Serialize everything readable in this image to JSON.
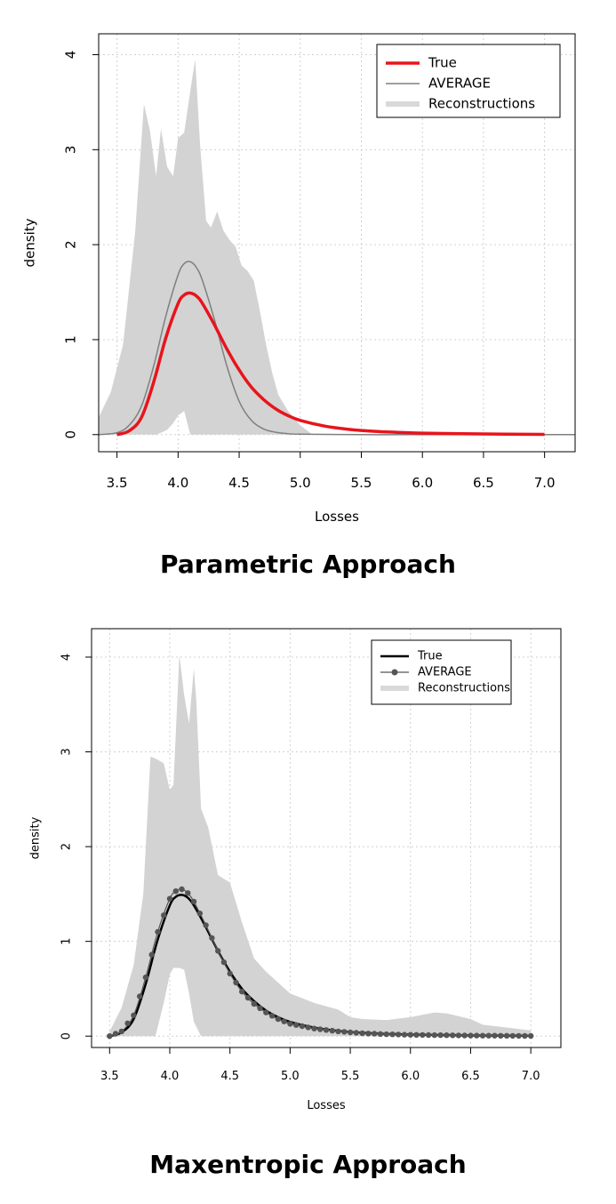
{
  "chart_data": [
    {
      "type": "area",
      "xlabel": "Losses",
      "ylabel": "density",
      "xlim": [
        3.35,
        7.25
      ],
      "ylim": [
        -0.18,
        4.22
      ],
      "xticks": [
        "3.5",
        "4.0",
        "4.5",
        "5.0",
        "5.5",
        "6.0",
        "6.5",
        "7.0"
      ],
      "yticks": [
        "0",
        "1",
        "2",
        "3",
        "4"
      ],
      "grid": true,
      "legend_position": "top-right",
      "legend": [
        "True",
        "AVERAGE",
        "Reconstructions"
      ],
      "colors": {
        "true": "#e8141c",
        "average": "#7f7f7f",
        "band": "#d3d3d3"
      },
      "series": [
        {
          "name": "True",
          "x": [
            3.5,
            3.6,
            3.7,
            3.8,
            3.9,
            4.0,
            4.05,
            4.1,
            4.15,
            4.2,
            4.3,
            4.4,
            4.5,
            4.6,
            4.7,
            4.8,
            4.9,
            5.0,
            5.2,
            5.4,
            5.6,
            5.8,
            6.0,
            6.5,
            7.0
          ],
          "values": [
            0.0,
            0.04,
            0.18,
            0.55,
            1.02,
            1.38,
            1.47,
            1.49,
            1.46,
            1.38,
            1.15,
            0.9,
            0.68,
            0.5,
            0.37,
            0.27,
            0.2,
            0.15,
            0.09,
            0.055,
            0.035,
            0.024,
            0.016,
            0.007,
            0.003
          ]
        },
        {
          "name": "AVERAGE",
          "x": [
            3.35,
            3.5,
            3.6,
            3.7,
            3.8,
            3.9,
            4.0,
            4.05,
            4.1,
            4.15,
            4.2,
            4.3,
            4.4,
            4.5,
            4.6,
            4.7,
            4.8,
            4.9,
            5.0,
            5.5,
            6.0,
            7.0,
            7.25
          ],
          "values": [
            0.0,
            0.02,
            0.1,
            0.3,
            0.72,
            1.25,
            1.68,
            1.8,
            1.82,
            1.76,
            1.62,
            1.2,
            0.72,
            0.35,
            0.15,
            0.06,
            0.025,
            0.01,
            0.005,
            0.0,
            0.0,
            0.0,
            0.0
          ]
        },
        {
          "name": "Reconstructions",
          "x": [
            3.35,
            3.45,
            3.55,
            3.65,
            3.72,
            3.77,
            3.82,
            3.86,
            3.91,
            3.96,
            4.0,
            4.05,
            4.1,
            4.14,
            4.18,
            4.23,
            4.27,
            4.32,
            4.37,
            4.42,
            4.47,
            4.52,
            4.57,
            4.62,
            4.67,
            4.72,
            4.77,
            4.82,
            4.9,
            5.0,
            5.1
          ],
          "upper": [
            0.18,
            0.45,
            0.95,
            2.15,
            3.48,
            3.2,
            2.72,
            3.22,
            2.82,
            2.72,
            3.12,
            3.18,
            3.62,
            3.95,
            3.05,
            2.25,
            2.18,
            2.35,
            2.15,
            2.05,
            1.98,
            1.78,
            1.72,
            1.62,
            1.3,
            0.95,
            0.65,
            0.42,
            0.25,
            0.1,
            0.0
          ],
          "lower": [
            0.0,
            0.0,
            0.0,
            0.0,
            0.0,
            0.0,
            0.0,
            0.02,
            0.05,
            0.12,
            0.2,
            0.25,
            0.0,
            0.0,
            0.0,
            0.0,
            0.0,
            0.0,
            0.0,
            0.0,
            0.0,
            0.0,
            0.0,
            0.0,
            0.0,
            0.0,
            0.0,
            0.0,
            0.0,
            0.0,
            0.0
          ]
        }
      ]
    },
    {
      "type": "area",
      "xlabel": "Losses",
      "ylabel": "density",
      "xlim": [
        3.35,
        7.25
      ],
      "ylim": [
        -0.12,
        4.3
      ],
      "xticks": [
        "3.5",
        "4.0",
        "4.5",
        "5.0",
        "5.5",
        "6.0",
        "6.5",
        "7.0"
      ],
      "yticks": [
        "0",
        "1",
        "2",
        "3",
        "4"
      ],
      "grid": true,
      "legend_position": "top-right",
      "legend": [
        "True",
        "AVERAGE",
        "Reconstructions"
      ],
      "colors": {
        "true": "#000000",
        "average": "#555555",
        "band": "#d3d3d3"
      },
      "series": [
        {
          "name": "True",
          "x": [
            3.5,
            3.6,
            3.7,
            3.8,
            3.9,
            4.0,
            4.05,
            4.1,
            4.15,
            4.2,
            4.3,
            4.4,
            4.5,
            4.6,
            4.7,
            4.8,
            4.9,
            5.0,
            5.2,
            5.4,
            5.6,
            5.8,
            6.0,
            6.5,
            7.0
          ],
          "values": [
            0.0,
            0.04,
            0.18,
            0.55,
            1.02,
            1.38,
            1.47,
            1.49,
            1.46,
            1.38,
            1.15,
            0.9,
            0.68,
            0.5,
            0.37,
            0.27,
            0.2,
            0.15,
            0.09,
            0.055,
            0.035,
            0.024,
            0.016,
            0.007,
            0.003
          ]
        },
        {
          "name": "AVERAGE",
          "x": [
            3.5,
            3.6,
            3.7,
            3.8,
            3.9,
            4.0,
            4.05,
            4.1,
            4.15,
            4.2,
            4.3,
            4.4,
            4.5,
            4.6,
            4.7,
            4.8,
            4.9,
            5.0,
            5.2,
            5.4,
            5.6,
            5.8,
            6.0,
            6.5,
            7.0
          ],
          "values": [
            0.0,
            0.05,
            0.22,
            0.62,
            1.1,
            1.45,
            1.53,
            1.55,
            1.51,
            1.42,
            1.17,
            0.9,
            0.66,
            0.47,
            0.34,
            0.25,
            0.18,
            0.13,
            0.08,
            0.05,
            0.03,
            0.02,
            0.014,
            0.006,
            0.002
          ]
        },
        {
          "name": "Reconstructions",
          "x": [
            3.5,
            3.6,
            3.7,
            3.78,
            3.84,
            3.88,
            3.95,
            4.0,
            4.03,
            4.08,
            4.12,
            4.16,
            4.2,
            4.22,
            4.26,
            4.32,
            4.4,
            4.5,
            4.6,
            4.7,
            4.8,
            5.0,
            5.2,
            5.4,
            5.5,
            5.6,
            5.8,
            6.0,
            6.2,
            6.3,
            6.5,
            6.6,
            7.0
          ],
          "upper": [
            0.05,
            0.3,
            0.75,
            1.5,
            2.95,
            2.93,
            2.88,
            2.6,
            2.65,
            4.02,
            3.6,
            3.3,
            3.88,
            3.55,
            2.4,
            2.2,
            1.7,
            1.62,
            1.2,
            0.82,
            0.68,
            0.45,
            0.35,
            0.28,
            0.2,
            0.18,
            0.17,
            0.2,
            0.25,
            0.24,
            0.18,
            0.12,
            0.06
          ],
          "lower": [
            0.0,
            0.0,
            0.0,
            0.0,
            0.0,
            0.0,
            0.35,
            0.65,
            0.72,
            0.72,
            0.7,
            0.45,
            0.15,
            0.1,
            0.0,
            0.0,
            0.0,
            0.0,
            0.0,
            0.0,
            0.0,
            0.0,
            0.0,
            0.0,
            0.0,
            0.0,
            0.0,
            0.0,
            0.0,
            0.0,
            0.0,
            0.0,
            0.0
          ]
        }
      ]
    }
  ],
  "captions": {
    "panel1": "Parametric Approach",
    "panel2": "Maxentropic Approach"
  }
}
